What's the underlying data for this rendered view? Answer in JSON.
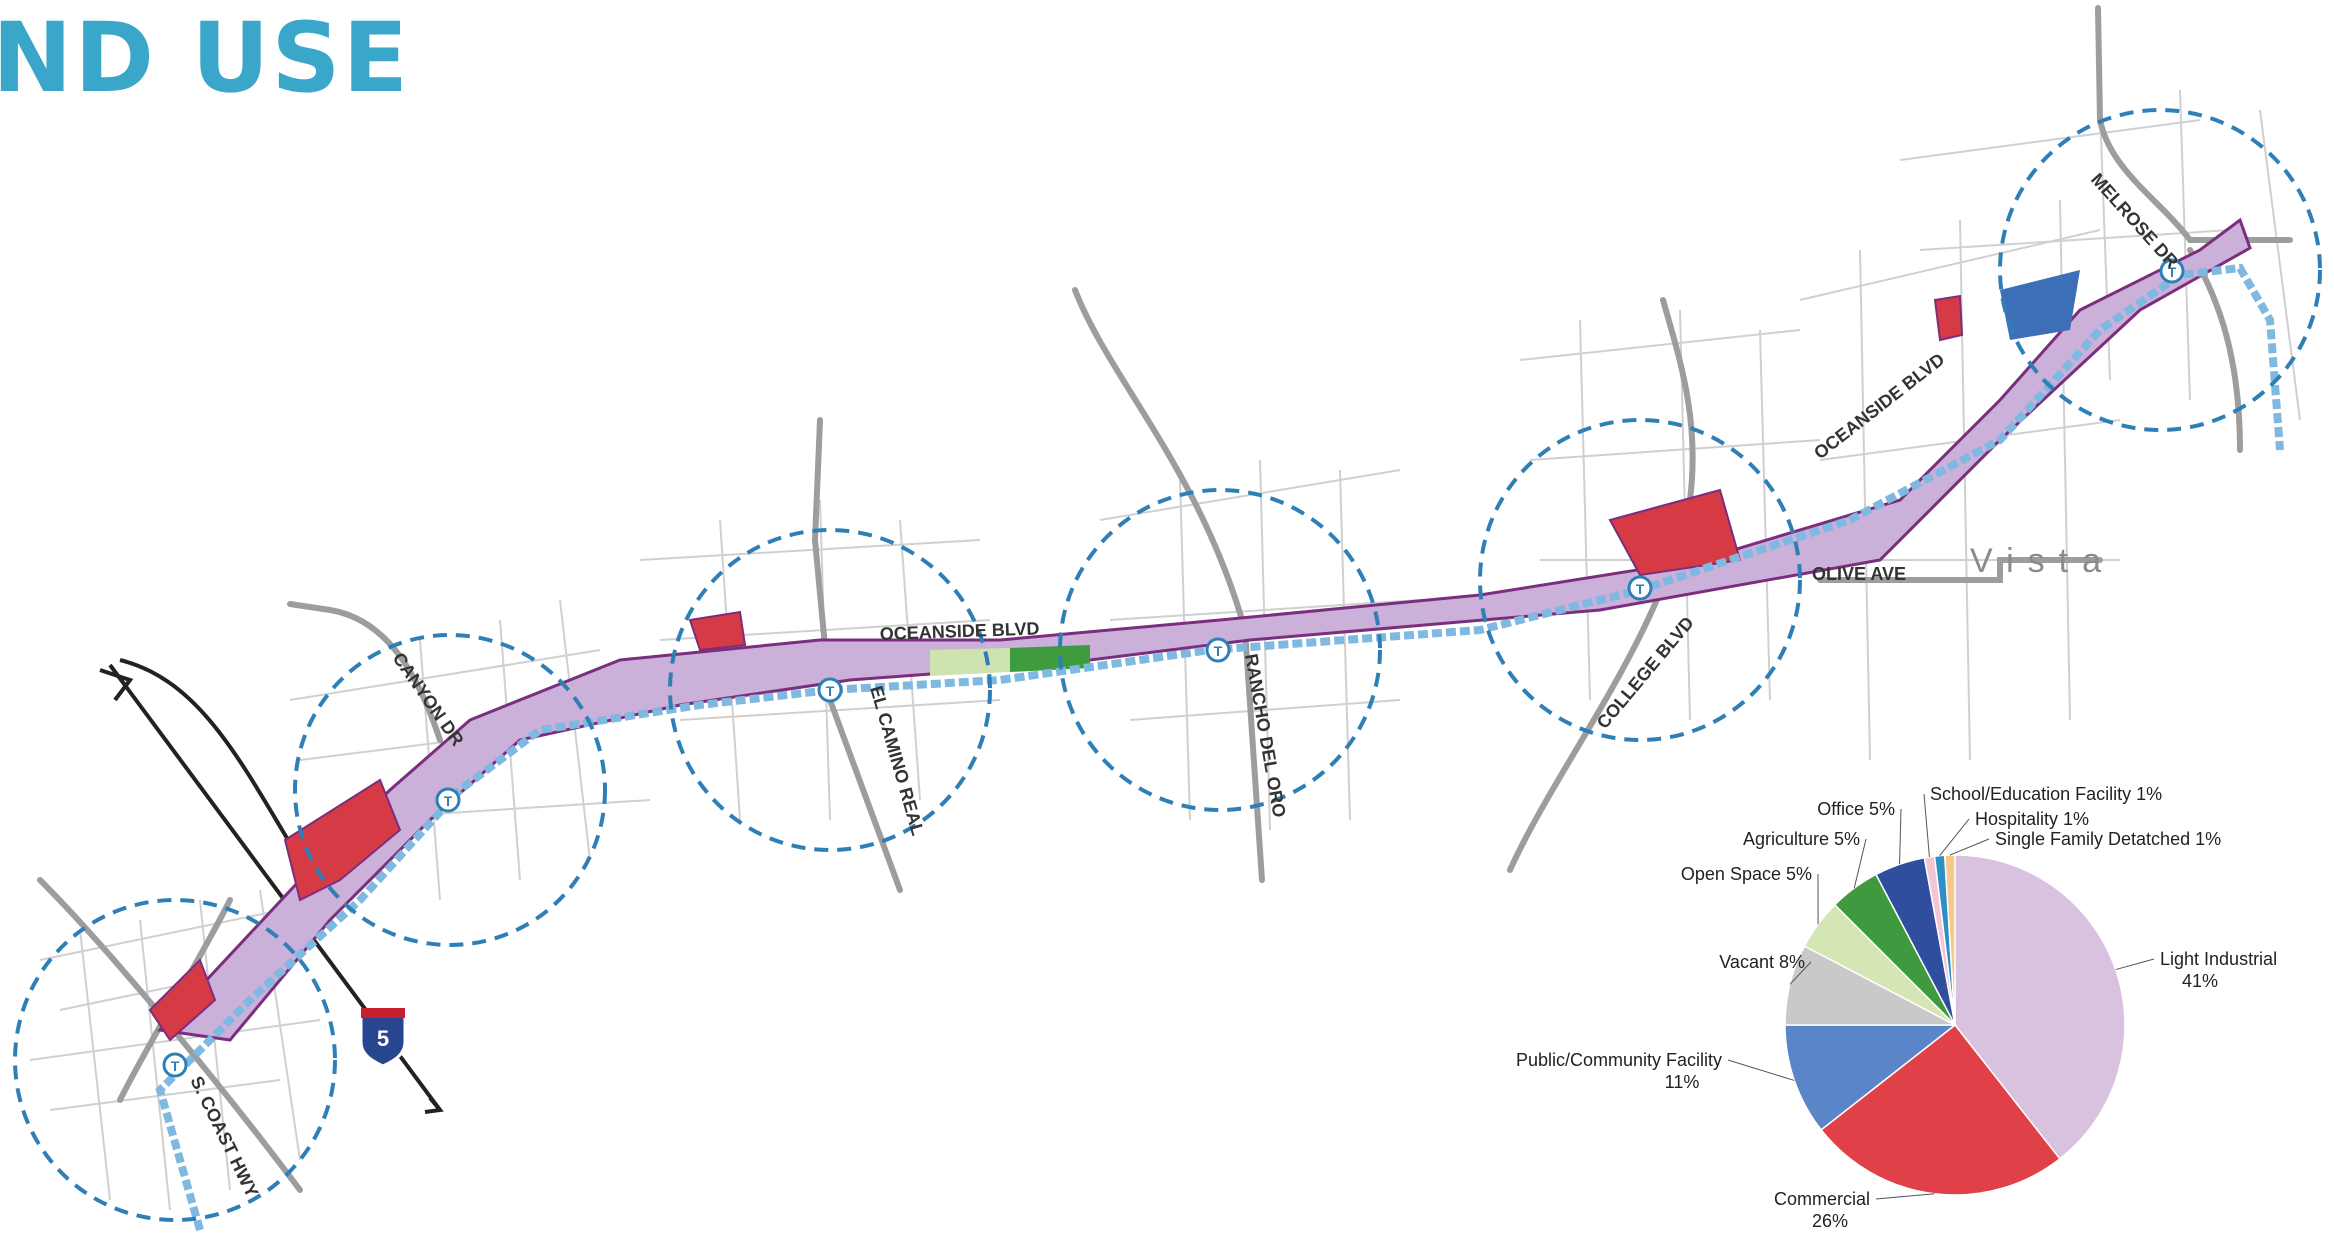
{
  "header": {
    "title": "ND USE"
  },
  "map": {
    "place": "Vista",
    "roads": {
      "oceanside_blvd_1": "OCEANSIDE BLVD",
      "oceanside_blvd_2": "OCEANSIDE BLVD",
      "canyon_dr": "CANYON DR",
      "el_camino_real": "EL CAMINO REAL",
      "rancho_del_oro": "RANCHO DEL ORO",
      "college_blvd": "COLLEGE BLVD",
      "olive_ave": "OLIVE AVE",
      "melrose_dr": "MELROSE DR",
      "s_coast_hwy": "S. COAST HWY"
    },
    "interstate_shield": "5",
    "transit_icon": "transit-station-icon",
    "colors": {
      "corridor": "#c8aed8",
      "commercial": "#d63a44",
      "public": "#3c6fb8",
      "open_space": "#cfe3b0",
      "agriculture": "#3e9b3e",
      "vacant": "#c8c8c8",
      "rail": "#7fb9e2",
      "circle": "#2f7fb7"
    }
  },
  "chart_data": {
    "type": "pie",
    "title": "",
    "slices": [
      {
        "label": "Light Industrial",
        "value": 41,
        "text": "41%",
        "color": "#d8c2df"
      },
      {
        "label": "Commercial",
        "value": 26,
        "text": "26%",
        "color": "#e04148"
      },
      {
        "label": "Public/Community Facility",
        "value": 11,
        "text": "11%",
        "color": "#5a85c8"
      },
      {
        "label": "Vacant",
        "value": 8,
        "text": "8%",
        "color": "#c9c9c9"
      },
      {
        "label": "Open Space",
        "value": 5,
        "text": "5%",
        "color": "#d3e6b4"
      },
      {
        "label": "Agriculture",
        "value": 5,
        "text": "5%",
        "color": "#3f9a3f"
      },
      {
        "label": "Office",
        "value": 5,
        "text": "5%",
        "color": "#2f4f9e"
      },
      {
        "label": "School/Education Facility",
        "value": 1,
        "text": "1%",
        "color": "#f2c6d4"
      },
      {
        "label": "Hospitality",
        "value": 1,
        "text": "1%",
        "color": "#2e8fc7"
      },
      {
        "label": "Single Family Detatched",
        "value": 1,
        "text": "1%",
        "color": "#f6c98a"
      }
    ]
  }
}
